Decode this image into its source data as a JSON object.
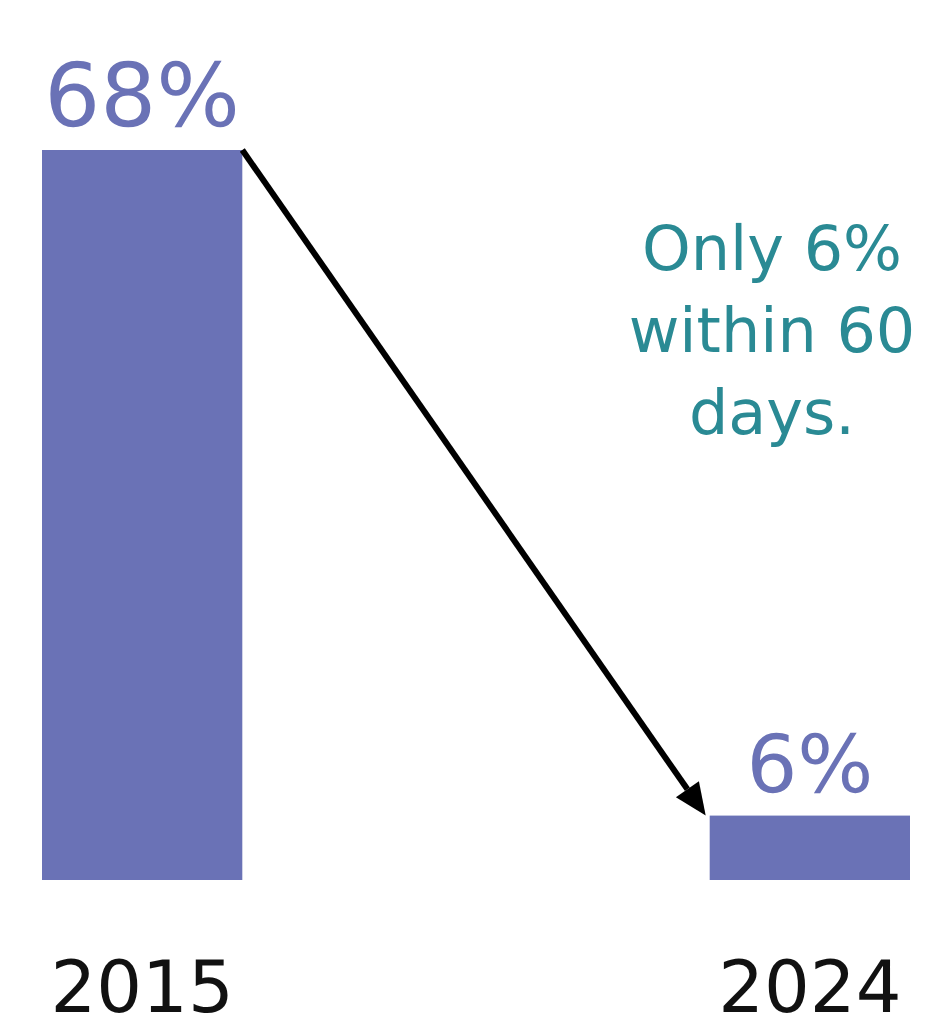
{
  "chart_data": {
    "type": "bar",
    "categories": [
      "2015",
      "2024"
    ],
    "values": [
      68,
      6
    ],
    "color": "#6a72b6",
    "data_labels": true,
    "value_labels": [
      "68%",
      "6%"
    ],
    "annotations": [
      "Only 6%\nwithin 60\ndays."
    ]
  }
}
